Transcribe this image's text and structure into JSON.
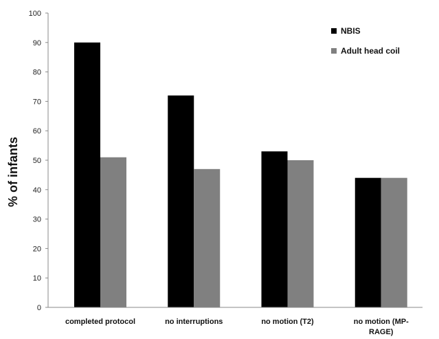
{
  "chart_data": {
    "type": "bar",
    "categories": [
      "completed protocol",
      "no interruptions",
      "no motion (T2)",
      "no motion (MP-RAGE)"
    ],
    "category_label_lines": [
      [
        "completed protocol"
      ],
      [
        "no interruptions"
      ],
      [
        "no motion (T2)"
      ],
      [
        "no motion (MP-",
        "RAGE)"
      ]
    ],
    "series": [
      {
        "name": "NBIS",
        "values": [
          90,
          72,
          53,
          44
        ],
        "color": "#000000"
      },
      {
        "name": "Adult head coil",
        "values": [
          51,
          47,
          50,
          44
        ],
        "color": "#808080"
      }
    ],
    "ylabel": "% of infants",
    "xlabel": "",
    "ylim": [
      0,
      100
    ],
    "yticks": [
      0,
      10,
      20,
      30,
      40,
      50,
      60,
      70,
      80,
      90,
      100
    ],
    "grid": false,
    "legend_position": "top-right"
  }
}
